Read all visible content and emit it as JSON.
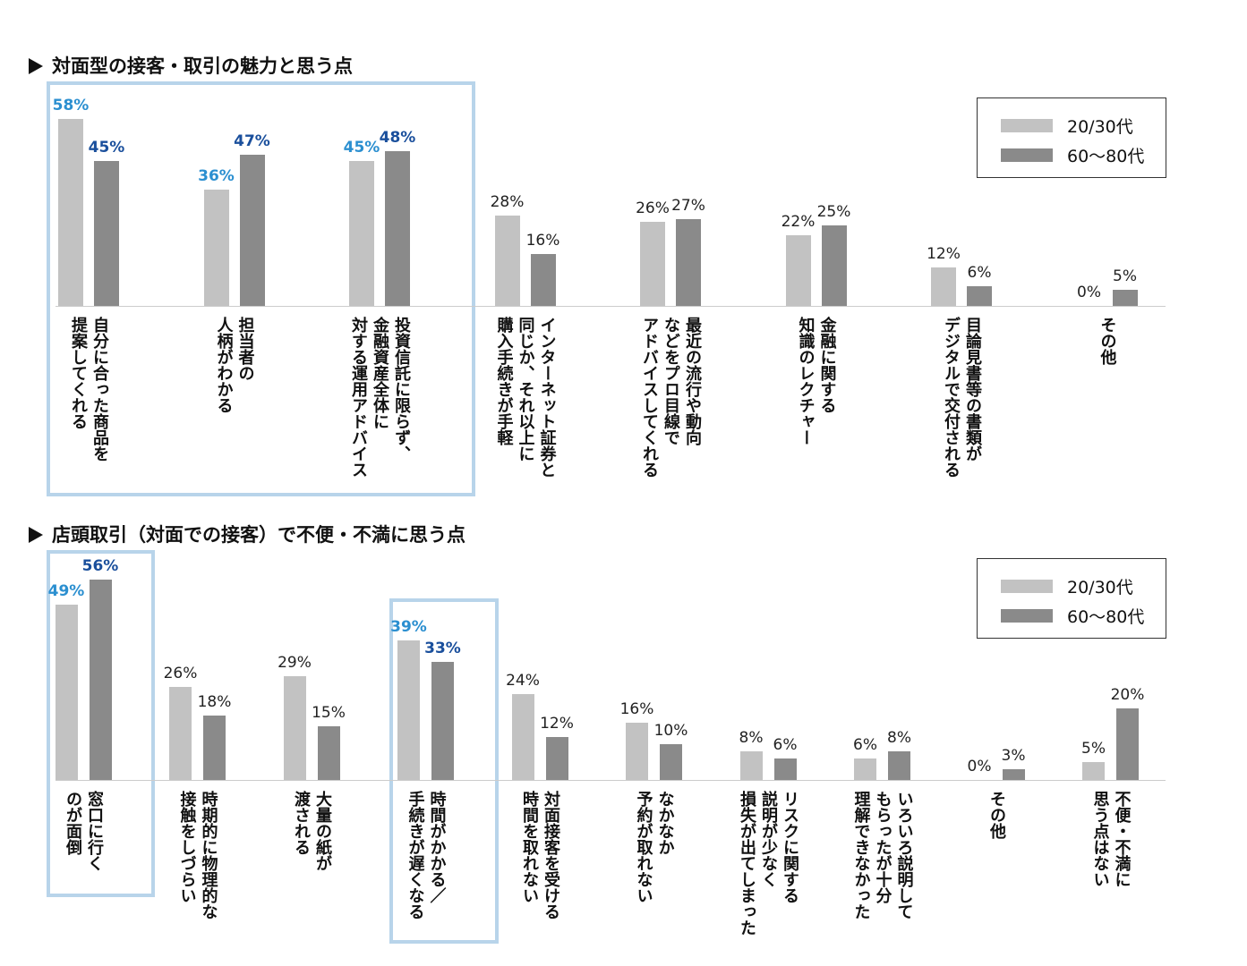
{
  "legend_labels": [
    "20/30代",
    "60〜80代"
  ],
  "colors": {
    "series_0": "#c2c2c2",
    "series_1": "#8a8a8a",
    "highlight_border": "#b8d4ea",
    "label_light_blue": "#2b8fd0",
    "label_dark_blue": "#1a4f9c"
  },
  "chart_data": [
    {
      "type": "bar",
      "title": "対面型の接客・取引の魅力と思う点",
      "categories": [
        "自分に合った商品を\n提案してくれる",
        "担当者の\n人柄がわかる",
        "投資信託に限らず、\n金融資産全体に\n対する運用アドバイス",
        "インターネット証券と\n同じか、それ以上に\n購入手続きが手軽",
        "最近の流行や動向\nなどをプロ目線で\nアドバイスしてくれる",
        "金融に関する\n知識のレクチャー",
        "目論見書等の書類が\nデジタルで交付される",
        "その他"
      ],
      "series": [
        {
          "name": "20/30代",
          "values": [
            58,
            36,
            45,
            28,
            26,
            22,
            12,
            0
          ]
        },
        {
          "name": "60〜80代",
          "values": [
            45,
            47,
            48,
            16,
            27,
            25,
            6,
            5
          ]
        }
      ],
      "value_labels": [
        [
          "58%",
          "36%",
          "45%",
          "28%",
          "26%",
          "22%",
          "12%",
          "0%"
        ],
        [
          "45%",
          "47%",
          "48%",
          "16%",
          "27%",
          "25%",
          "6%",
          "5%"
        ]
      ],
      "highlighted_categories": [
        0,
        1,
        2
      ],
      "legend_position": "top-right"
    },
    {
      "type": "bar",
      "title": "店頭取引（対面での接客）で不便・不満に思う点",
      "categories": [
        "窓口に行く\nのが面倒",
        "時期的に物理的な\n接触をしづらい",
        "大量の紙が\n渡される",
        "時間がかかる／\n手続きが遅くなる",
        "対面接客を受ける\n時間を取れない",
        "なかなか\n予約が取れない",
        "リスクに関する\n説明が少なく\n損失が出てしまった",
        "いろいろ説明して\nもらったが十分\n理解できなかった",
        "その他",
        "不便・不満に\n思う点はない"
      ],
      "series": [
        {
          "name": "20/30代",
          "values": [
            49,
            26,
            29,
            39,
            24,
            16,
            8,
            6,
            0,
            5
          ]
        },
        {
          "name": "60〜80代",
          "values": [
            56,
            18,
            15,
            33,
            12,
            10,
            6,
            8,
            3,
            20
          ]
        }
      ],
      "value_labels": [
        [
          "49%",
          "26%",
          "29%",
          "39%",
          "24%",
          "16%",
          "8%",
          "6%",
          "0%",
          "5%"
        ],
        [
          "56%",
          "18%",
          "15%",
          "33%",
          "12%",
          "10%",
          "6%",
          "8%",
          "3%",
          "20%"
        ]
      ],
      "highlighted_categories": [
        0,
        3
      ],
      "legend_position": "top-right"
    }
  ]
}
